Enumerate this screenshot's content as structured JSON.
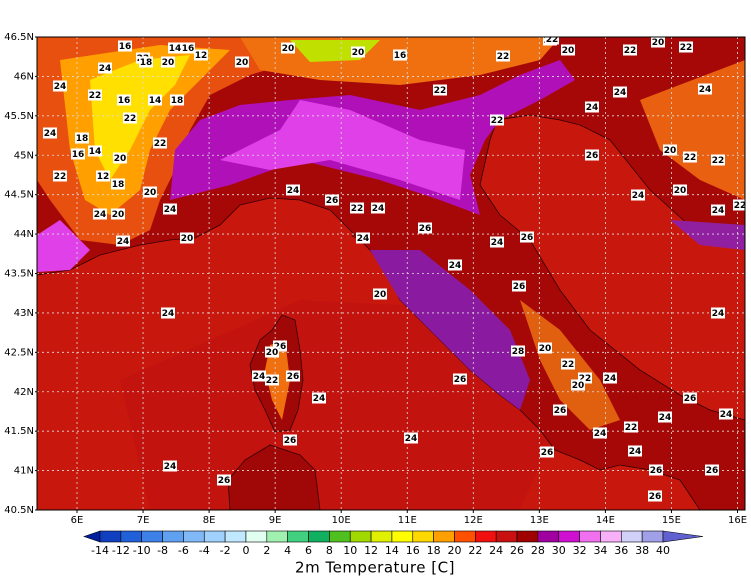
{
  "map": {
    "lat_labels": [
      "46.5N",
      "46N",
      "45.5N",
      "45N",
      "44.5N",
      "44N",
      "43.5N",
      "43N",
      "42.5N",
      "42N",
      "41.5N",
      "41N",
      "40.5N"
    ],
    "lon_labels": [
      "6E",
      "7E",
      "8E",
      "9E",
      "10E",
      "11E",
      "12E",
      "13E",
      "14E",
      "15E",
      "16E"
    ],
    "labels": [
      16,
      22,
      14,
      16,
      12,
      20,
      18,
      24,
      24,
      22,
      16,
      14,
      18,
      22,
      24,
      18,
      16,
      14,
      20,
      22,
      22,
      12,
      18,
      20,
      24,
      20,
      24,
      20,
      24,
      20,
      20,
      20,
      16,
      22,
      22,
      22,
      20,
      22,
      20,
      22,
      24,
      26,
      22,
      24,
      24,
      26,
      24,
      26,
      24,
      20,
      26,
      24,
      26,
      20,
      24,
      22,
      26,
      24,
      26,
      28,
      20,
      22,
      22,
      24,
      20,
      26,
      24,
      22,
      24,
      26,
      24,
      26,
      24,
      24,
      24,
      20,
      22,
      22,
      20,
      24,
      24,
      22,
      24,
      24,
      26,
      24,
      26,
      24,
      26,
      26,
      26,
      26,
      22,
      22
    ]
  },
  "colorbar": {
    "ticks": [
      -14,
      -12,
      -10,
      -8,
      -6,
      -4,
      -2,
      0,
      2,
      4,
      6,
      8,
      10,
      12,
      14,
      16,
      18,
      20,
      22,
      24,
      26,
      28,
      30,
      32,
      34,
      36,
      38,
      40
    ],
    "colors": [
      "#0020a0",
      "#1040c0",
      "#2060d8",
      "#3c80e8",
      "#60a0f0",
      "#80b8f8",
      "#a0d0fc",
      "#c0e8ff",
      "#e0fff0",
      "#a0f0b0",
      "#40d080",
      "#10b060",
      "#50c020",
      "#a0d800",
      "#e0f000",
      "#ffff00",
      "#ffd800",
      "#ffa000",
      "#ff5000",
      "#f01010",
      "#c81010",
      "#a00000",
      "#a000a0",
      "#d010d0",
      "#f070f0",
      "#f8b0f8",
      "#d0d0f8",
      "#a0a0e8",
      "#6060d0"
    ]
  },
  "title": "2m Temperature [C]"
}
